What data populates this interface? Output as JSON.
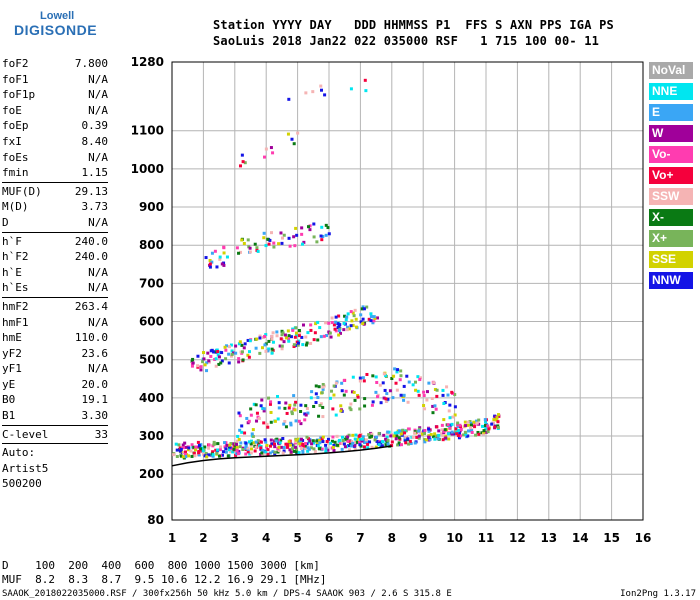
{
  "logo": {
    "line1": "Lowell",
    "line2": "DIGISONDE"
  },
  "header": {
    "line1": "Station YYYY DAY   DDD HHMMSS P1  FFS S AXN PPS IGA PS",
    "line2": "SaoLuis 2018 Jan22 022 035000 RSF   1 715 100 00- 11"
  },
  "params": [
    {
      "name": "foF2",
      "value": "7.800"
    },
    {
      "name": "foF1",
      "value": "N/A"
    },
    {
      "name": "foF1p",
      "value": "N/A"
    },
    {
      "name": "foE",
      "value": "N/A"
    },
    {
      "name": "foEp",
      "value": "0.39"
    },
    {
      "name": "fxI",
      "value": "8.40"
    },
    {
      "name": "foEs",
      "value": "N/A"
    },
    {
      "name": "fmin",
      "value": "1.15"
    },
    {
      "sep": true
    },
    {
      "name": "MUF(D)",
      "value": "29.13"
    },
    {
      "name": "M(D)",
      "value": "3.73"
    },
    {
      "name": "D",
      "value": "N/A"
    },
    {
      "sep": true
    },
    {
      "name": "h`F",
      "value": "240.0"
    },
    {
      "name": "h`F2",
      "value": "240.0"
    },
    {
      "name": "h`E",
      "value": "N/A"
    },
    {
      "name": "h`Es",
      "value": "N/A"
    },
    {
      "sep": true
    },
    {
      "name": "hmF2",
      "value": "263.4"
    },
    {
      "name": "hmF1",
      "value": "N/A"
    },
    {
      "name": "hmE",
      "value": "110.0"
    },
    {
      "name": "yF2",
      "value": "23.6"
    },
    {
      "name": "yF1",
      "value": "N/A"
    },
    {
      "name": "yE",
      "value": "20.0"
    },
    {
      "name": "B0",
      "value": "19.1"
    },
    {
      "name": "B1",
      "value": "3.30"
    },
    {
      "sep": true
    },
    {
      "name": "C-level",
      "value": "33"
    },
    {
      "sep": true
    },
    {
      "name": "Auto:",
      "value": ""
    },
    {
      "name": "Artist5",
      "value": ""
    },
    {
      "name": "500200",
      "value": ""
    }
  ],
  "legend": [
    {
      "label": "NoVal",
      "color": "#a9a9a9"
    },
    {
      "label": "NNE",
      "color": "#00e6f0"
    },
    {
      "label": "E",
      "color": "#3aa6f5"
    },
    {
      "label": "W",
      "color": "#a0009a"
    },
    {
      "label": "Vo-",
      "color": "#ff3cb0"
    },
    {
      "label": "Vo+",
      "color": "#f5003c"
    },
    {
      "label": "SSW",
      "color": "#f5b4b4"
    },
    {
      "label": "X-",
      "color": "#0a7a14"
    },
    {
      "label": "X+",
      "color": "#78b45a"
    },
    {
      "label": "SSE",
      "color": "#d2d200"
    },
    {
      "label": "NNW",
      "color": "#1414e6"
    }
  ],
  "bottom": {
    "d_line": "D    100  200  400  600  800 1000 1500 3000 [km]",
    "muf_line": "MUF  8.2  8.3  8.7  9.5 10.6 12.2 16.9 29.1 [MHz]",
    "footer_left": "SAAOK_2018022035000.RSF / 300fx256h 50 kHz 5.0 km / DPS-4 SAAOK 903 / 2.6 S 315.8 E",
    "footer_right": "Ion2Png 1.3.17"
  },
  "chart_data": {
    "type": "scatter",
    "title": "",
    "xlabel": "",
    "ylabel": "",
    "xlim": [
      1,
      16
    ],
    "ylim": [
      80,
      1280
    ],
    "x_ticks": [
      1,
      2,
      3,
      4,
      5,
      6,
      7,
      8,
      9,
      10,
      11,
      12,
      13,
      14,
      15,
      16
    ],
    "y_ticks": [
      80,
      200,
      300,
      400,
      500,
      600,
      700,
      800,
      900,
      1000,
      1100,
      1280
    ],
    "grid": true,
    "layer_curve": {
      "name": "",
      "x": [
        1.0,
        1.5,
        2.0,
        2.5,
        3.0,
        3.5,
        4.0,
        4.5,
        5.0,
        5.5,
        6.0,
        6.5,
        7.0,
        7.5,
        8.0
      ],
      "y": [
        222,
        230,
        236,
        240,
        243,
        245,
        247,
        249,
        251,
        253,
        256,
        259,
        263,
        268,
        274
      ]
    },
    "traces": [
      {
        "name": "F trace",
        "x": [
          1.0,
          2.0,
          3.0,
          4.0,
          5.0,
          6.0,
          7.0,
          8.0,
          9.0,
          10.0,
          11.0,
          11.4
        ],
        "y": [
          265,
          268,
          272,
          276,
          280,
          284,
          290,
          298,
          308,
          318,
          330,
          345
        ],
        "spread": 40,
        "density": 1.0
      },
      {
        "name": "F spread-F",
        "x": [
          3.0,
          4.0,
          5.0,
          6.0,
          7.0,
          8.0,
          9.0,
          10.0
        ],
        "y": [
          330,
          360,
          380,
          400,
          420,
          440,
          410,
          380
        ],
        "spread": 90,
        "density": 0.5
      },
      {
        "name": "2F trace",
        "x": [
          1.5,
          2.5,
          3.5,
          4.5,
          5.5,
          6.5,
          7.5
        ],
        "y": [
          485,
          510,
          535,
          555,
          575,
          600,
          630
        ],
        "spread": 55,
        "density": 0.6
      },
      {
        "name": "3F trace",
        "x": [
          2.0,
          3.0,
          4.0,
          5.0,
          6.0
        ],
        "y": [
          760,
          790,
          810,
          830,
          845
        ],
        "spread": 55,
        "density": 0.3
      },
      {
        "name": "4F trace",
        "x": [
          3.0,
          4.0,
          5.0
        ],
        "y": [
          1030,
          1060,
          1090
        ],
        "spread": 60,
        "density": 0.1
      },
      {
        "name": "5F trace",
        "x": [
          4.5,
          5.5,
          7.5
        ],
        "y": [
          1180,
          1200,
          1220
        ],
        "spread": 40,
        "density": 0.05
      }
    ]
  }
}
